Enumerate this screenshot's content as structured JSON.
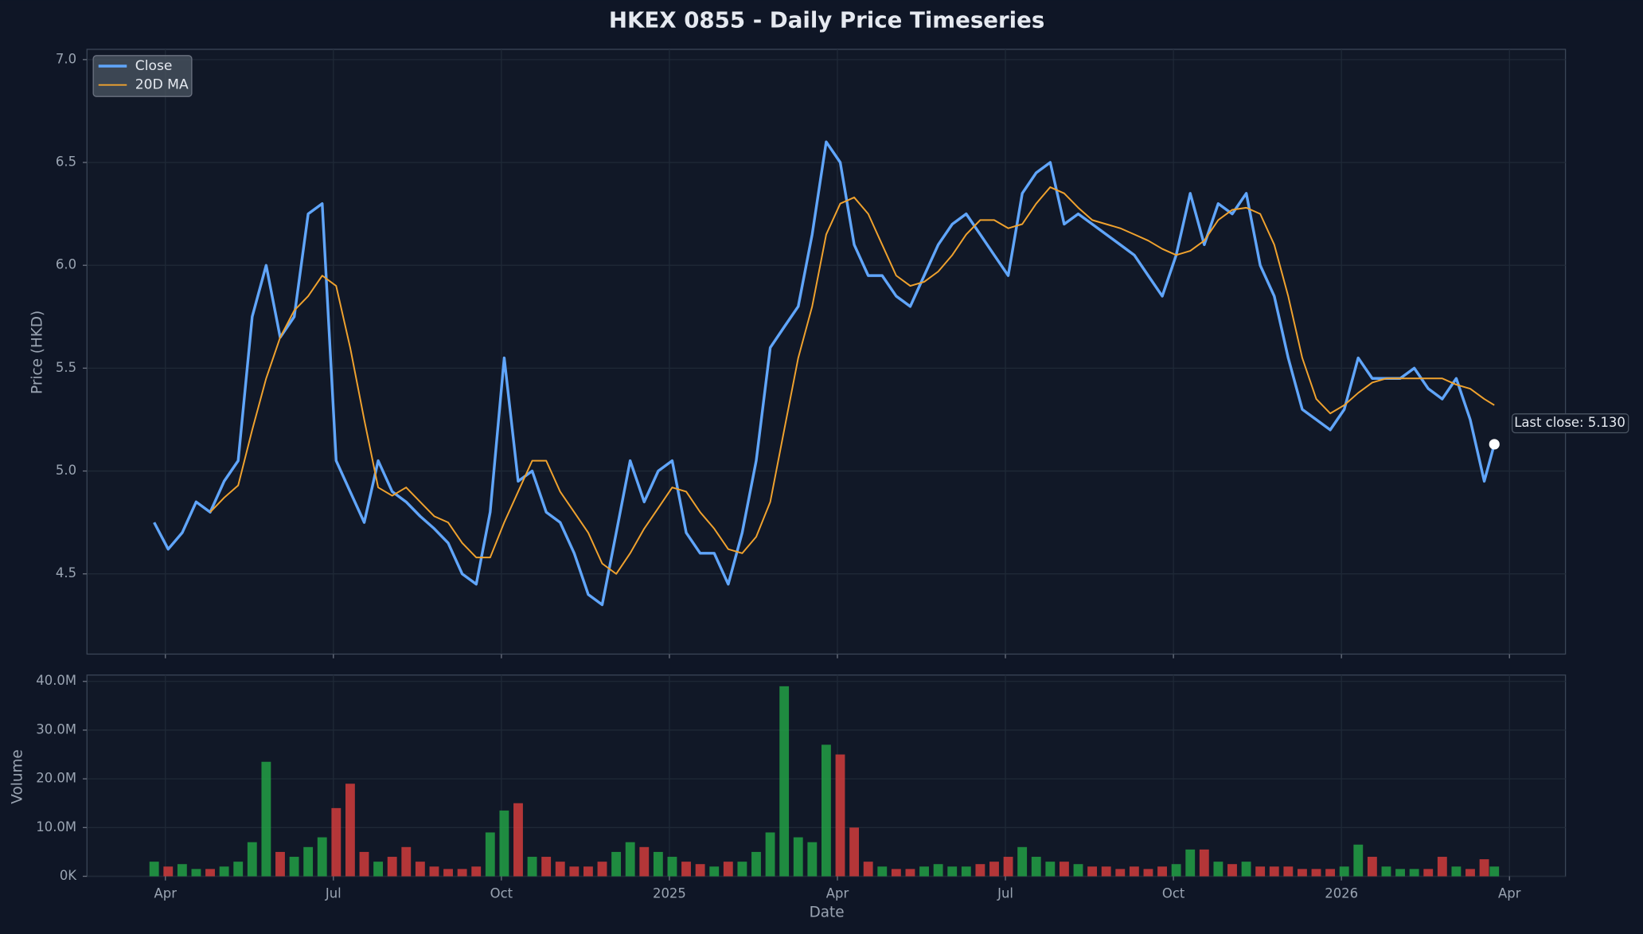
{
  "chart_data": [
    {
      "type": "line",
      "title": "HKEX 0855 - Daily Price Timeseries",
      "y_label": "Price (HKD)",
      "legend": "upper left",
      "grid": true,
      "annotation": "Last close: 5.130",
      "xlim": [
        1.6,
        28.0
      ],
      "xticks": [
        {
          "value": 3,
          "label": "Apr"
        },
        {
          "value": 6,
          "label": "Jul"
        },
        {
          "value": 9,
          "label": "Oct"
        },
        {
          "value": 12,
          "label": "2025"
        },
        {
          "value": 15,
          "label": "Apr"
        },
        {
          "value": 18,
          "label": "Jul"
        },
        {
          "value": 21,
          "label": "Oct"
        },
        {
          "value": 24,
          "label": "2026"
        },
        {
          "value": 27,
          "label": "Apr"
        }
      ],
      "ylim": [
        4.11,
        7.05
      ],
      "yticks": [
        4.5,
        {
          "value": 5,
          "label": "5.0"
        },
        5.5,
        {
          "value": 6,
          "label": "6.0"
        },
        6.5,
        {
          "value": 7,
          "label": "7.0"
        }
      ],
      "x": [
        2.8,
        3.05,
        3.3,
        3.55,
        3.8,
        4.05,
        4.3,
        4.55,
        4.8,
        5.05,
        5.3,
        5.55,
        5.8,
        6.05,
        6.3,
        6.55,
        6.8,
        7.05,
        7.3,
        7.55,
        7.8,
        8.05,
        8.3,
        8.55,
        8.8,
        9.05,
        9.3,
        9.55,
        9.8,
        10.05,
        10.3,
        10.55,
        10.8,
        11.05,
        11.3,
        11.55,
        11.8,
        12.05,
        12.3,
        12.55,
        12.8,
        13.05,
        13.3,
        13.55,
        13.8,
        14.05,
        14.3,
        14.55,
        14.8,
        15.05,
        15.3,
        15.55,
        15.8,
        16.05,
        16.3,
        16.55,
        16.8,
        17.05,
        17.3,
        17.55,
        17.8,
        18.05,
        18.3,
        18.55,
        18.8,
        19.05,
        19.3,
        19.55,
        19.8,
        20.05,
        20.3,
        20.55,
        20.8,
        21.05,
        21.3,
        21.55,
        21.8,
        22.05,
        22.3,
        22.55,
        22.8,
        23.05,
        23.3,
        23.55,
        23.8,
        24.05,
        24.3,
        24.55,
        24.8,
        25.05,
        25.3,
        25.55,
        25.8,
        26.05,
        26.3,
        26.55,
        26.73
      ],
      "series": [
        {
          "name": "Close",
          "color": "#60a5fa",
          "values": [
            4.75,
            4.62,
            4.7,
            4.85,
            4.8,
            4.95,
            5.05,
            5.75,
            6.0,
            5.65,
            5.75,
            6.25,
            6.3,
            5.05,
            4.9,
            4.75,
            5.05,
            4.9,
            4.85,
            4.78,
            4.72,
            4.65,
            4.5,
            4.45,
            4.8,
            5.55,
            4.95,
            5.0,
            4.8,
            4.75,
            4.6,
            4.4,
            4.35,
            4.7,
            5.05,
            4.85,
            5.0,
            5.05,
            4.7,
            4.6,
            4.6,
            4.45,
            4.7,
            5.05,
            5.6,
            5.7,
            5.8,
            6.15,
            6.6,
            6.5,
            6.1,
            5.95,
            5.95,
            5.85,
            5.8,
            5.95,
            6.1,
            6.2,
            6.25,
            6.15,
            6.05,
            5.95,
            6.35,
            6.45,
            6.5,
            6.2,
            6.25,
            6.2,
            6.15,
            6.1,
            6.05,
            5.95,
            5.85,
            6.05,
            6.35,
            6.1,
            6.3,
            6.25,
            6.35,
            6.0,
            5.85,
            5.55,
            5.3,
            5.25,
            5.2,
            5.3,
            5.55,
            5.45,
            5.45,
            5.45,
            5.5,
            5.4,
            5.35,
            5.45,
            5.25,
            4.95,
            5.13
          ]
        },
        {
          "name": "20D MA",
          "color": "#f0a22e",
          "values": [
            null,
            null,
            null,
            null,
            4.8,
            4.87,
            4.93,
            5.2,
            5.45,
            5.65,
            5.78,
            5.85,
            5.95,
            5.9,
            5.6,
            5.25,
            4.92,
            4.88,
            4.92,
            4.85,
            4.78,
            4.75,
            4.65,
            4.58,
            4.58,
            4.75,
            4.9,
            5.05,
            5.05,
            4.9,
            4.8,
            4.7,
            4.55,
            4.5,
            4.6,
            4.72,
            4.82,
            4.92,
            4.9,
            4.8,
            4.72,
            4.62,
            4.6,
            4.68,
            4.85,
            5.2,
            5.55,
            5.8,
            6.15,
            6.3,
            6.33,
            6.25,
            6.1,
            5.95,
            5.9,
            5.92,
            5.97,
            6.05,
            6.15,
            6.22,
            6.22,
            6.18,
            6.2,
            6.3,
            6.38,
            6.35,
            6.28,
            6.22,
            6.2,
            6.18,
            6.15,
            6.12,
            6.08,
            6.05,
            6.07,
            6.12,
            6.22,
            6.27,
            6.28,
            6.25,
            6.1,
            5.85,
            5.55,
            5.35,
            5.28,
            5.32,
            5.38,
            5.43,
            5.45,
            5.45,
            5.45,
            5.45,
            5.45,
            5.42,
            5.4,
            5.35,
            5.32
          ]
        }
      ]
    },
    {
      "type": "bar",
      "y_label": "Volume",
      "x_label": "Date",
      "grid": true,
      "up_color": "#22a045",
      "down_color": "#d13c3c",
      "xlim": [
        1.6,
        28.0
      ],
      "xticks": [
        {
          "value": 3,
          "label": "Apr"
        },
        {
          "value": 6,
          "label": "Jul"
        },
        {
          "value": 9,
          "label": "Oct"
        },
        {
          "value": 12,
          "label": "2025"
        },
        {
          "value": 15,
          "label": "Apr"
        },
        {
          "value": 18,
          "label": "Jul"
        },
        {
          "value": 21,
          "label": "Oct"
        },
        {
          "value": 24,
          "label": "2026"
        },
        {
          "value": 27,
          "label": "Apr"
        }
      ],
      "ylim": [
        0,
        41300000
      ],
      "yticks": [
        {
          "value": 0,
          "label": "0K"
        },
        {
          "value": 10000000,
          "label": "10.0M"
        },
        {
          "value": 20000000,
          "label": "20.0M"
        },
        {
          "value": 30000000,
          "label": "30.0M"
        },
        {
          "value": 40000000,
          "label": "40.0M"
        }
      ],
      "x": [
        2.8,
        3.05,
        3.3,
        3.55,
        3.8,
        4.05,
        4.3,
        4.55,
        4.8,
        5.05,
        5.3,
        5.55,
        5.8,
        6.05,
        6.3,
        6.55,
        6.8,
        7.05,
        7.3,
        7.55,
        7.8,
        8.05,
        8.3,
        8.55,
        8.8,
        9.05,
        9.3,
        9.55,
        9.8,
        10.05,
        10.3,
        10.55,
        10.8,
        11.05,
        11.3,
        11.55,
        11.8,
        12.05,
        12.3,
        12.55,
        12.8,
        13.05,
        13.3,
        13.55,
        13.8,
        14.05,
        14.3,
        14.55,
        14.8,
        15.05,
        15.3,
        15.55,
        15.8,
        16.05,
        16.3,
        16.55,
        16.8,
        17.05,
        17.3,
        17.55,
        17.8,
        18.05,
        18.3,
        18.55,
        18.8,
        19.05,
        19.3,
        19.55,
        19.8,
        20.05,
        20.3,
        20.55,
        20.8,
        21.05,
        21.3,
        21.55,
        21.8,
        22.05,
        22.3,
        22.55,
        22.8,
        23.05,
        23.3,
        23.55,
        23.8,
        24.05,
        24.3,
        24.55,
        24.8,
        25.05,
        25.3,
        25.55,
        25.8,
        26.05,
        26.3,
        26.55,
        26.73
      ],
      "values": [
        3000000,
        2000000,
        2500000,
        1500000,
        1500000,
        2000000,
        3000000,
        7000000,
        23500000,
        5000000,
        4000000,
        6000000,
        8000000,
        14000000,
        19000000,
        5000000,
        3000000,
        4000000,
        6000000,
        3000000,
        2000000,
        1500000,
        1500000,
        2000000,
        9000000,
        13500000,
        15000000,
        4000000,
        4000000,
        3000000,
        2000000,
        2000000,
        3000000,
        5000000,
        7000000,
        6000000,
        5000000,
        4000000,
        3000000,
        2500000,
        2000000,
        3000000,
        3000000,
        5000000,
        9000000,
        39000000,
        8000000,
        7000000,
        27000000,
        25000000,
        10000000,
        3000000,
        2000000,
        1500000,
        1500000,
        2000000,
        2500000,
        2000000,
        2000000,
        2500000,
        3000000,
        4000000,
        6000000,
        4000000,
        3000000,
        3000000,
        2500000,
        2000000,
        2000000,
        1500000,
        2000000,
        1500000,
        2000000,
        2500000,
        5500000,
        5500000,
        3000000,
        2500000,
        3000000,
        2000000,
        2000000,
        2000000,
        1500000,
        1500000,
        1500000,
        2000000,
        6500000,
        4000000,
        2000000,
        1500000,
        1500000,
        1500000,
        4000000,
        2000000,
        1500000,
        3500000,
        2000000
      ]
    }
  ]
}
